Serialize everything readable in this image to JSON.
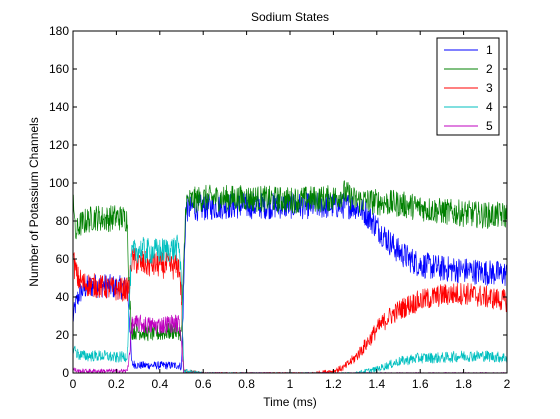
{
  "chart_data": {
    "type": "line",
    "title": "Sodium States",
    "xlabel": "Time (ms)",
    "ylabel": "Number of Potassium Channels",
    "xlim": [
      0,
      2
    ],
    "ylim": [
      0,
      180
    ],
    "xticks": [
      "0",
      "0.2",
      "0.4",
      "0.6",
      "0.8",
      "1",
      "1.2",
      "1.4",
      "1.6",
      "1.8",
      "2"
    ],
    "yticks": [
      "0",
      "20",
      "40",
      "60",
      "80",
      "100",
      "120",
      "140",
      "160",
      "180"
    ],
    "grid": false,
    "legend": "top-right",
    "series": [
      {
        "name": "1",
        "color": "#0000ff",
        "x": [
          0,
          0.01,
          0.03,
          0.06,
          0.1,
          0.15,
          0.2,
          0.25,
          0.26,
          0.27,
          0.3,
          0.35,
          0.4,
          0.45,
          0.49,
          0.5,
          0.52,
          0.55,
          0.6,
          0.7,
          0.8,
          0.9,
          1.0,
          1.1,
          1.2,
          1.25,
          1.3,
          1.35,
          1.4,
          1.45,
          1.5,
          1.55,
          1.6,
          1.7,
          1.8,
          1.9,
          2.0
        ],
        "y": [
          28,
          35,
          42,
          45,
          46,
          46,
          45,
          45,
          30,
          5,
          4,
          4,
          4,
          4,
          4,
          3,
          86,
          87,
          87,
          88,
          88,
          88,
          88,
          88,
          88,
          88,
          88,
          84,
          77,
          70,
          64,
          60,
          57,
          55,
          54,
          53,
          52
        ]
      },
      {
        "name": "2",
        "color": "#008000",
        "x": [
          0,
          0.01,
          0.03,
          0.06,
          0.1,
          0.15,
          0.2,
          0.25,
          0.26,
          0.27,
          0.3,
          0.35,
          0.4,
          0.45,
          0.49,
          0.5,
          0.52,
          0.6,
          0.8,
          1.0,
          1.2,
          1.25,
          1.3,
          1.4,
          1.5,
          1.6,
          1.7,
          1.8,
          1.9,
          2.0
        ],
        "y": [
          100,
          72,
          78,
          80,
          82,
          81,
          82,
          81,
          40,
          22,
          22,
          21,
          21,
          22,
          22,
          20,
          90,
          92,
          92,
          91,
          92,
          95,
          91,
          90,
          89,
          87,
          85,
          84,
          83,
          83
        ]
      },
      {
        "name": "3",
        "color": "#ff0000",
        "x": [
          0,
          0.02,
          0.05,
          0.1,
          0.15,
          0.2,
          0.25,
          0.26,
          0.27,
          0.3,
          0.35,
          0.4,
          0.45,
          0.49,
          0.5,
          0.51,
          0.6,
          0.8,
          1.0,
          1.1,
          1.2,
          1.25,
          1.3,
          1.35,
          1.4,
          1.45,
          1.5,
          1.55,
          1.6,
          1.7,
          1.8,
          1.9,
          2.0
        ],
        "y": [
          60,
          50,
          47,
          46,
          45,
          44,
          44,
          45,
          60,
          58,
          57,
          57,
          56,
          56,
          40,
          1,
          0,
          0,
          0,
          0,
          1,
          3,
          8,
          15,
          23,
          29,
          33,
          36,
          38,
          41,
          42,
          40,
          38
        ]
      },
      {
        "name": "4",
        "color": "#00bfbf",
        "x": [
          0,
          0.02,
          0.05,
          0.1,
          0.15,
          0.2,
          0.25,
          0.26,
          0.27,
          0.3,
          0.35,
          0.4,
          0.45,
          0.49,
          0.5,
          0.51,
          0.6,
          0.8,
          1.0,
          1.2,
          1.3,
          1.35,
          1.4,
          1.45,
          1.5,
          1.6,
          1.7,
          1.8,
          1.9,
          2.0
        ],
        "y": [
          14,
          10,
          9,
          9,
          9,
          8,
          9,
          40,
          62,
          65,
          64,
          64,
          65,
          66,
          50,
          1,
          0,
          0,
          0,
          0,
          0,
          1,
          2,
          4,
          6,
          8,
          8,
          9,
          9,
          8
        ]
      },
      {
        "name": "5",
        "color": "#bf00bf",
        "x": [
          0,
          0.02,
          0.05,
          0.1,
          0.15,
          0.2,
          0.25,
          0.26,
          0.27,
          0.3,
          0.35,
          0.4,
          0.45,
          0.49,
          0.5,
          0.51,
          0.6,
          0.8,
          1.0,
          1.2,
          1.4,
          1.6,
          1.8,
          2.0
        ],
        "y": [
          2,
          1,
          1,
          1,
          1,
          1,
          1,
          10,
          25,
          26,
          25,
          25,
          26,
          26,
          18,
          0,
          0,
          0,
          0,
          0,
          0,
          0,
          0,
          0
        ]
      }
    ]
  }
}
